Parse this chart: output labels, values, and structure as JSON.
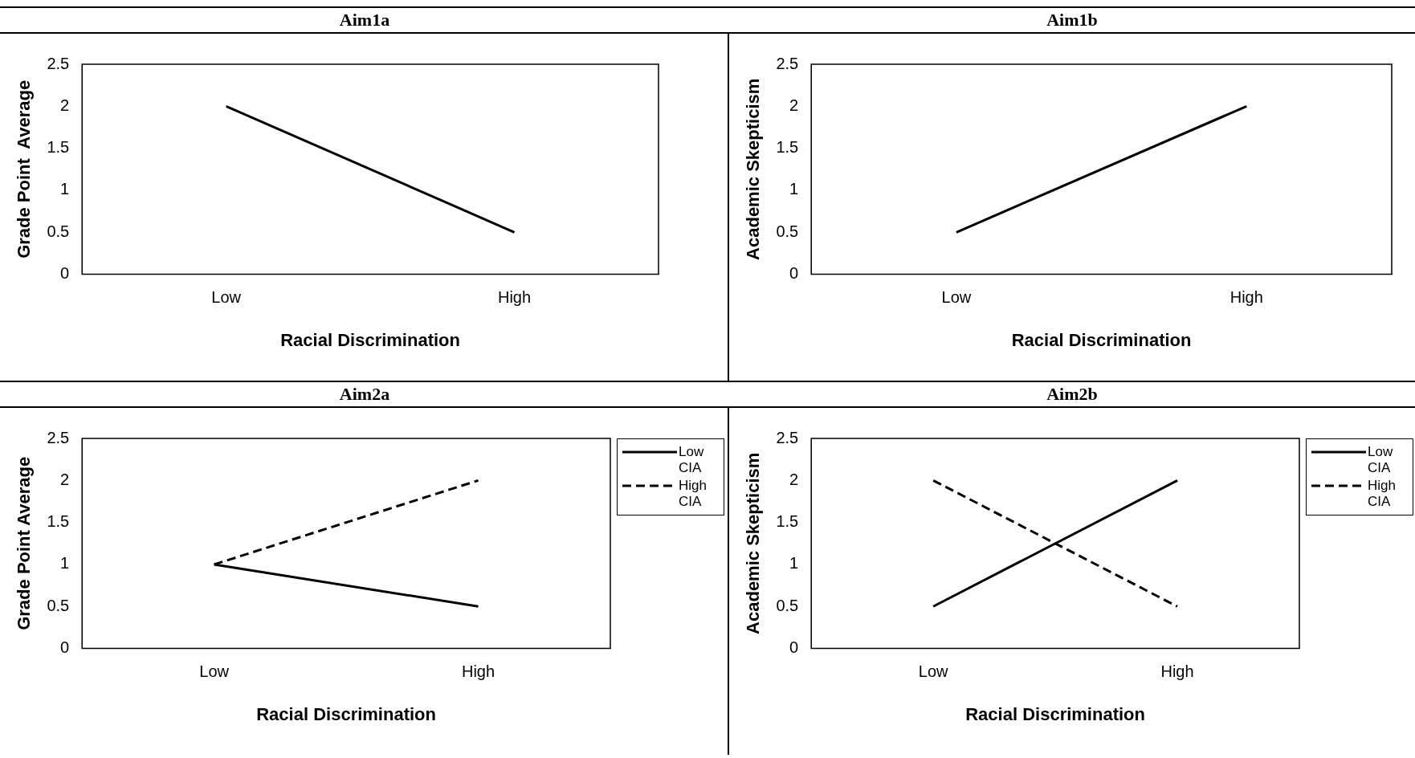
{
  "chart_data": [
    {
      "type": "line",
      "title": "Aim1a",
      "xlabel": "Racial Discrimination",
      "ylabel": "Grade Point  Average",
      "categories": [
        "Low",
        "High"
      ],
      "ylim": [
        0,
        2.5
      ],
      "yticks": [
        0,
        0.5,
        1,
        1.5,
        2,
        2.5
      ],
      "grid": false,
      "legend": false,
      "series": [
        {
          "color": "#000000",
          "values": [
            2,
            0.5
          ]
        }
      ]
    },
    {
      "type": "line",
      "title": "Aim1b",
      "xlabel": "Racial Discrimination",
      "ylabel": "Academic Skepticism",
      "categories": [
        "Low",
        "High"
      ],
      "ylim": [
        0,
        2.5
      ],
      "yticks": [
        0,
        0.5,
        1,
        1.5,
        2,
        2.5
      ],
      "grid": false,
      "legend": false,
      "series": [
        {
          "color": "#000000",
          "values": [
            0.5,
            2
          ]
        }
      ]
    },
    {
      "type": "line",
      "title": "Aim2a",
      "xlabel": "Racial Discrimination",
      "ylabel": "Grade Point Average",
      "categories": [
        "Low",
        "High"
      ],
      "ylim": [
        0,
        2.5
      ],
      "yticks": [
        0,
        0.5,
        1,
        1.5,
        2,
        2.5
      ],
      "grid": false,
      "legend": "top right",
      "series": [
        {
          "name": "Low CIA",
          "color": "#000000",
          "line_style": "solid",
          "values": [
            1,
            0.5
          ]
        },
        {
          "name": "High CIA",
          "color": "#000000",
          "line_style": "dashed",
          "values": [
            1,
            2
          ]
        }
      ]
    },
    {
      "type": "line",
      "title": "Aim2b",
      "xlabel": "Racial Discrimination",
      "ylabel": "Academic Skepticism",
      "categories": [
        "Low",
        "High"
      ],
      "ylim": [
        0,
        2.5
      ],
      "yticks": [
        0,
        0.5,
        1,
        1.5,
        2,
        2.5
      ],
      "grid": false,
      "legend": "top right",
      "series": [
        {
          "name": "Low CIA",
          "color": "#000000",
          "line_style": "solid",
          "values": [
            0.5,
            2
          ]
        },
        {
          "name": "High CIA",
          "color": "#000000",
          "line_style": "dashed",
          "values": [
            2,
            0.5
          ]
        }
      ]
    }
  ]
}
